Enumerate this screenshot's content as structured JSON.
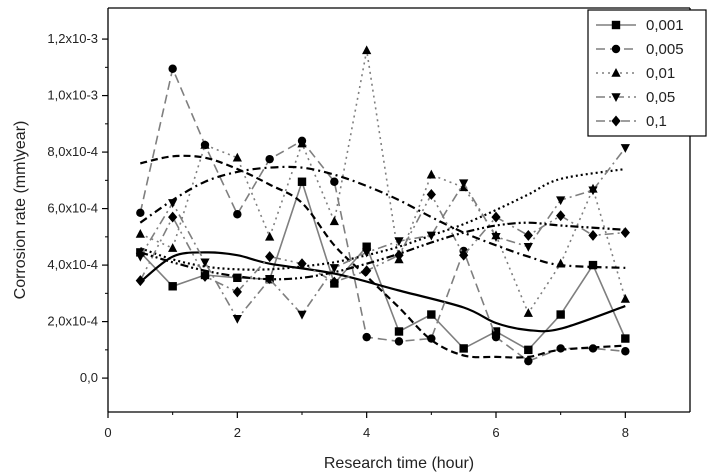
{
  "chart_data": {
    "type": "line",
    "title": "",
    "xlabel": "Research time (hour)",
    "ylabel": "Corrosion rate (mm\\year)",
    "xlim": [
      0,
      9
    ],
    "ylim": [
      -0.00012,
      0.00131
    ],
    "grid": false,
    "legend_position": "top-right",
    "x_ticks": [
      0,
      2,
      4,
      6,
      8
    ],
    "x_tick_labels": [
      "0",
      "2",
      "4",
      "6",
      "8"
    ],
    "y_ticks": [
      0,
      0.0002,
      0.0004,
      0.0006,
      0.0008,
      0.001,
      0.0012
    ],
    "y_tick_labels": [
      "0,0",
      "2,0x10-4",
      "4,0x10-4",
      "6,0x10-4",
      "8,0x10-4",
      "1,0x10-3",
      "1,2x10-3"
    ],
    "x": [
      0.5,
      1,
      1.5,
      2,
      2.5,
      3,
      3.5,
      4,
      4.5,
      5,
      5.5,
      6,
      6.5,
      7,
      7.5,
      8
    ],
    "series": [
      {
        "name": "0,001",
        "marker": "square",
        "color": "#7f7f7f",
        "dash": "",
        "values": [
          0.000445,
          0.000325,
          0.000365,
          0.000355,
          0.00035,
          0.000695,
          0.000335,
          0.000465,
          0.000165,
          0.000225,
          0.000105,
          0.000165,
          0.0001,
          0.000225,
          0.0004,
          0.00014
        ],
        "fit": [
          0.00034,
          0.00043,
          0.000445,
          0.000435,
          0.000405,
          0.00037,
          0.00031,
          0.00025,
          0.000195,
          0.00017,
          0.000175,
          0.000255
        ],
        "fit_x": [
          0.5,
          1.0,
          1.5,
          2.0,
          2.5,
          3.5,
          4.5,
          5.5,
          6.0,
          6.5,
          7.0,
          8.0
        ],
        "fit_style": "solid"
      },
      {
        "name": "0,005",
        "marker": "circle",
        "color": "#7f7f7f",
        "dash": "9,5",
        "values": [
          0.000585,
          0.001095,
          0.000825,
          0.00058,
          0.000775,
          0.00084,
          0.000695,
          0.000145,
          0.00013,
          0.00014,
          0.00045,
          0.000145,
          6e-05,
          0.000105,
          0.000105,
          9.5e-05
        ],
        "fit": [
          0.00076,
          0.000785,
          0.00078,
          0.00074,
          0.000685,
          0.00062,
          0.00047,
          0.00036,
          0.00025,
          0.000135,
          8e-05,
          7.5e-05,
          7.5e-05,
          0.0001,
          0.000115
        ],
        "fit_x": [
          0.5,
          1.0,
          1.5,
          2.0,
          2.5,
          3.0,
          3.5,
          4.0,
          4.5,
          5.0,
          5.5,
          6.0,
          6.5,
          7.0,
          8.0
        ],
        "fit_style": "dash"
      },
      {
        "name": "0,01",
        "marker": "triangle-up",
        "color": "#7f7f7f",
        "dash": "2,4",
        "values": [
          0.00051,
          0.00046,
          0.000825,
          0.00078,
          0.0005,
          0.00083,
          0.000555,
          0.00116,
          0.00042,
          0.00072,
          0.000675,
          0.000505,
          0.00023,
          0.000405,
          0.00067,
          0.00028
        ],
        "fit": [
          0.00046,
          0.00042,
          0.000395,
          0.000385,
          0.000385,
          0.000395,
          0.00041,
          0.000435,
          0.000465,
          0.000505,
          0.000545,
          0.000595,
          0.00065,
          0.000705,
          0.00074
        ],
        "fit_x": [
          0.5,
          1.0,
          1.5,
          2.0,
          2.5,
          3.0,
          3.5,
          4.0,
          4.5,
          5.0,
          5.5,
          6.0,
          6.5,
          7.0,
          8.0
        ],
        "fit_style": "dot"
      },
      {
        "name": "0,05",
        "marker": "triangle-down",
        "color": "#7f7f7f",
        "dash": "9,4,2,4",
        "values": [
          0.00043,
          0.00062,
          0.00041,
          0.00021,
          0.00035,
          0.000225,
          0.00039,
          0.000445,
          0.000485,
          0.000505,
          0.00069,
          0.0005,
          0.000465,
          0.00063,
          0.000665,
          0.000815
        ],
        "fit": [
          0.00055,
          0.00063,
          0.000695,
          0.00073,
          0.000745,
          0.000745,
          0.00072,
          0.00068,
          0.00063,
          0.00057,
          0.000515,
          0.00047,
          0.00043,
          0.0004,
          0.00039
        ],
        "fit_x": [
          0.5,
          1.0,
          1.5,
          2.0,
          2.5,
          3.0,
          3.5,
          4.0,
          4.5,
          5.0,
          5.5,
          6.0,
          6.5,
          7.0,
          8.0
        ],
        "fit_style": "dashdot"
      },
      {
        "name": "0,1",
        "marker": "diamond",
        "color": "#7f7f7f",
        "dash": "9,4,2,4,2,4",
        "values": [
          0.000345,
          0.00057,
          0.00036,
          0.000305,
          0.00043,
          0.000405,
          0.00034,
          0.00038,
          0.000435,
          0.00065,
          0.000435,
          0.00057,
          0.000505,
          0.000575,
          0.000505,
          0.000515
        ],
        "fit": [
          0.000445,
          0.00041,
          0.00038,
          0.00036,
          0.00035,
          0.000355,
          0.000375,
          0.000405,
          0.00044,
          0.00048,
          0.000515,
          0.00054,
          0.00055,
          0.00054,
          0.000525
        ],
        "fit_x": [
          0.5,
          1.0,
          1.5,
          2.0,
          2.5,
          3.0,
          3.5,
          4.0,
          4.5,
          5.0,
          5.5,
          6.0,
          6.5,
          7.0,
          8.0
        ],
        "fit_style": "dashdotdot"
      }
    ]
  }
}
